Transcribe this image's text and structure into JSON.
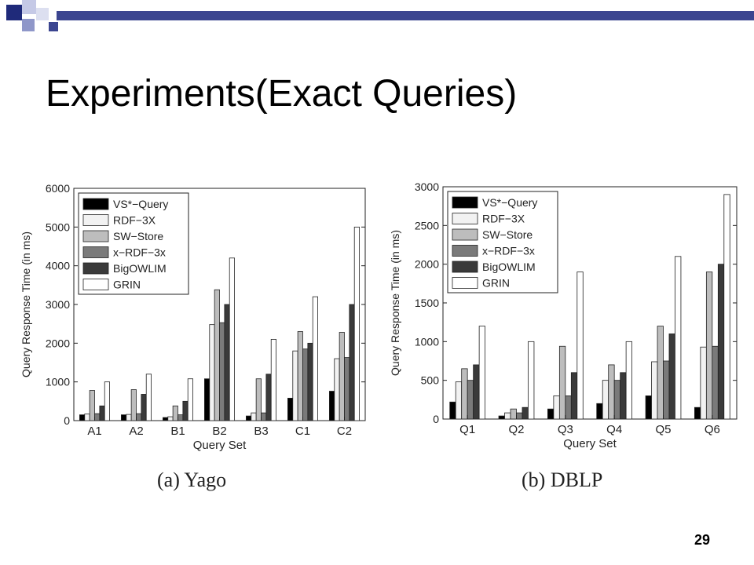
{
  "slide": {
    "title": "Experiments(Exact Queries)",
    "page_number": "29",
    "accent_colors": [
      "#1f2a7a",
      "#8f97c9",
      "#3b4590"
    ]
  },
  "captions": {
    "a_label": "(a)",
    "a_name": "Yago",
    "b_label": "(b)",
    "b_name": "DBLP"
  },
  "series_colors": [
    "#000000",
    "#f2f2f2",
    "#bdbdbd",
    "#7a7a7a",
    "#3a3a3a",
    "#ffffff"
  ],
  "chart_data": [
    {
      "type": "bar",
      "xlabel": "Query Set",
      "ylabel": "Query Response Time (in ms)",
      "ylim": [
        0,
        6000
      ],
      "yticks": [
        0,
        1000,
        2000,
        3000,
        4000,
        5000,
        6000
      ],
      "categories": [
        "A1",
        "A2",
        "B1",
        "B2",
        "B3",
        "C1",
        "C2"
      ],
      "legend_position": "top-left",
      "series": [
        {
          "name": "VS*−Query",
          "values": [
            150,
            150,
            80,
            1080,
            120,
            580,
            760
          ]
        },
        {
          "name": "RDF−3X",
          "values": [
            170,
            160,
            100,
            2480,
            200,
            1800,
            1600
          ]
        },
        {
          "name": "SW−Store",
          "values": [
            780,
            800,
            380,
            3380,
            1080,
            2300,
            2280
          ]
        },
        {
          "name": "x−RDF−3x",
          "values": [
            180,
            180,
            150,
            2530,
            200,
            1850,
            1630
          ]
        },
        {
          "name": "BigOWLIM",
          "values": [
            380,
            680,
            500,
            3000,
            1200,
            2000,
            3000
          ]
        },
        {
          "name": "GRIN",
          "values": [
            1000,
            1200,
            1080,
            4200,
            2100,
            3200,
            5000
          ]
        }
      ]
    },
    {
      "type": "bar",
      "xlabel": "Query Set",
      "ylabel": "Query Response Time (in ms)",
      "ylim": [
        0,
        3000
      ],
      "yticks": [
        0,
        500,
        1000,
        1500,
        2000,
        2500,
        3000
      ],
      "categories": [
        "Q1",
        "Q2",
        "Q3",
        "Q4",
        "Q5",
        "Q6"
      ],
      "legend_position": "top-left",
      "series": [
        {
          "name": "VS*−Query",
          "values": [
            220,
            40,
            130,
            200,
            300,
            150
          ]
        },
        {
          "name": "RDF−3X",
          "values": [
            480,
            80,
            300,
            500,
            740,
            930
          ]
        },
        {
          "name": "SW−Store",
          "values": [
            650,
            130,
            940,
            700,
            1200,
            1900
          ]
        },
        {
          "name": "x−RDF−3x",
          "values": [
            500,
            80,
            300,
            500,
            750,
            940
          ]
        },
        {
          "name": "BigOWLIM",
          "values": [
            700,
            150,
            600,
            600,
            1100,
            2000
          ]
        },
        {
          "name": "GRIN",
          "values": [
            1200,
            1000,
            1900,
            1000,
            2100,
            2900
          ]
        }
      ]
    }
  ]
}
